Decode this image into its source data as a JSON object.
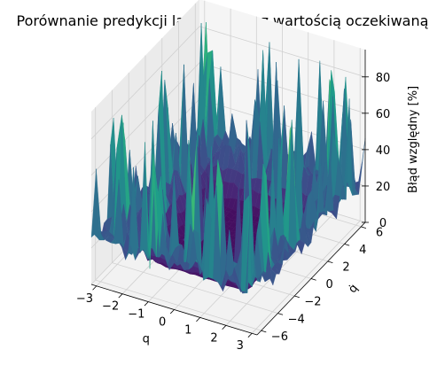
{
  "chart_data": {
    "type": "surface",
    "title": "Porównanie predykcji lagrangianu z wartością oczekiwaną",
    "xlabel": "q",
    "ylabel": "q̇",
    "zlabel": "Błąd względny [%]",
    "xlim": [
      -3.2,
      3.2
    ],
    "ylim": [
      -6.5,
      6.5
    ],
    "zlim": [
      0,
      95
    ],
    "x_ticks": [
      -3,
      -2,
      -1,
      0,
      1,
      2,
      3
    ],
    "y_ticks": [
      -6,
      -4,
      -2,
      0,
      2,
      4,
      6
    ],
    "z_ticks": [
      0,
      20,
      40,
      60,
      80
    ],
    "colormap": "viridis",
    "grid": true,
    "surface": {
      "description_values": "relative error vs (q, q̇); low (~1-5%) in an inner region |q|<~2.3, |q̇|<~4.5, rising to rim, with large noisy spikes (up to ~90%) near the boundary",
      "inner_q_half_width": 2.3,
      "inner_qdot_half_width": 4.5,
      "floor_value": 3,
      "rim_value": 18,
      "spike_max": 92
    }
  }
}
